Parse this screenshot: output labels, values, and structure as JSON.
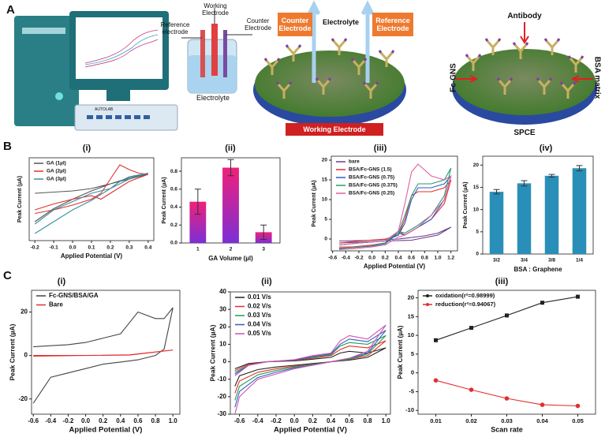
{
  "panels": {
    "a": "A",
    "b": "B",
    "c": "C",
    "b_sub": [
      "(i)",
      "(ii)",
      "(iii)",
      "(iv)"
    ],
    "c_sub": [
      "(i)",
      "(ii)",
      "(iii)"
    ]
  },
  "diagram": {
    "reference_electrode": "Reference electrode",
    "working_electrode": "Working Electrode",
    "counter_electrode": "Counter Electrode",
    "electrolyte": "Electrolyte",
    "autolab": "AUTOLAB",
    "counter_box": "Counter Electrode",
    "electrolyte_top": "Electrolyte",
    "reference_box": "Reference Electrode",
    "working_box": "Working Electrode",
    "antibody": "Antibody",
    "fc_gns": "Fc-GNS",
    "bsa_matrix": "BSA matrix",
    "spce": "SPCE"
  },
  "chart_data": [
    {
      "type": "line",
      "ylabel": "Peak Current (µA)",
      "xlabel": "Applied Potential (V)",
      "xlim": [
        -0.23,
        0.43
      ],
      "ylim": [
        -2.3,
        1.2
      ],
      "xticks": [
        -0.2,
        -0.1,
        {
          "value": 0,
          "label": "0.0"
        },
        0.1,
        0.2,
        0.3,
        0.4
      ],
      "legend": "upper left",
      "series": [
        {
          "name": "GA (1µl)",
          "color": "#555555",
          "x": [
            -0.2,
            -0.1,
            0,
            0.1,
            0.2,
            0.3,
            0.35,
            0.4,
            0.3,
            0.2,
            0.1,
            0,
            -0.1,
            -0.2
          ],
          "values": [
            -0.3,
            -0.25,
            -0.2,
            -0.1,
            0.1,
            0.35,
            0.45,
            0.5,
            0.3,
            0.1,
            -0.2,
            -0.55,
            -0.95,
            -1.5
          ]
        },
        {
          "name": "GA (2µl)",
          "color": "#e03030",
          "x": [
            -0.2,
            -0.1,
            0,
            0.1,
            0.15,
            0.2,
            0.25,
            0.3,
            0.35,
            0.4,
            0.3,
            0.2,
            0.15,
            0.1,
            0,
            -0.1,
            -0.2
          ],
          "values": [
            -1.15,
            -1.0,
            -0.8,
            -0.55,
            -0.3,
            0.3,
            0.9,
            0.7,
            0.55,
            0.5,
            0.2,
            -0.3,
            -0.55,
            -0.4,
            -0.55,
            -0.75,
            -1.0
          ]
        },
        {
          "name": "GA (3µl)",
          "color": "#3a8fa0",
          "x": [
            -0.2,
            -0.1,
            0,
            0.1,
            0.2,
            0.25,
            0.3,
            0.4,
            0.3,
            0.2,
            0.1,
            0,
            -0.1,
            -0.2
          ],
          "values": [
            -2.0,
            -1.5,
            -1.0,
            -0.6,
            -0.1,
            0.2,
            0.4,
            0.55,
            0.3,
            -0.1,
            -0.3,
            -0.65,
            -1.0,
            -1.6
          ]
        }
      ]
    },
    {
      "type": "bar",
      "ylabel": "Peak Current (µA)",
      "xlabel": "GA Volume (µl)",
      "categories": [
        "1",
        "2",
        "3"
      ],
      "values": [
        0.46,
        0.84,
        0.12
      ],
      "errors": [
        0.14,
        0.09,
        0.08
      ],
      "gradient": [
        "#f0207a",
        "#7b2fd6"
      ],
      "ylim": [
        0,
        0.95
      ],
      "yticks": [
        {
          "value": 0,
          "label": "0.0"
        },
        0.2,
        0.4,
        0.6,
        0.8
      ]
    },
    {
      "type": "line",
      "ylabel": "Peak Current (µA)",
      "xlabel": "Applied Potential (V)",
      "xlim": [
        -0.62,
        1.3
      ],
      "ylim": [
        -3,
        21
      ],
      "legend": "upper left",
      "xticks": [
        -0.6,
        -0.4,
        -0.2,
        {
          "value": 0,
          "label": "0.0"
        },
        0.2,
        0.4,
        0.6,
        0.8,
        {
          "value": 1,
          "label": "1.0"
        },
        1.2
      ],
      "yticks": [
        0,
        5,
        10,
        15,
        20
      ],
      "series": [
        {
          "name": "bare",
          "color": "#6a3a8a",
          "x": [
            -0.5,
            0,
            0.4,
            0.8,
            1.0,
            1.2,
            1.0,
            0.6,
            0.2,
            -0.2,
            -0.5
          ],
          "values": [
            -0.5,
            -0.3,
            0,
            0.8,
            1.5,
            3,
            1,
            -0.3,
            -0.5,
            -0.8,
            -1
          ]
        },
        {
          "name": "BSA/Fc-GNS (1.5)",
          "color": "#e03030",
          "x": [
            -0.5,
            -0.2,
            0.2,
            0.4,
            0.5,
            0.6,
            0.7,
            0.9,
            1.1,
            1.2,
            1.1,
            0.9,
            0.7,
            0.5,
            0.4,
            0.2,
            0,
            -0.3,
            -0.5
          ],
          "values": [
            -1,
            -0.5,
            0,
            1,
            5,
            11,
            12,
            12,
            13,
            15,
            9,
            5,
            3,
            1,
            2,
            -1,
            -1.5,
            -2,
            -2
          ]
        },
        {
          "name": "BSA/Fc-GNS (0.75)",
          "color": "#2a5fc0",
          "x": [
            -0.5,
            -0.2,
            0.2,
            0.4,
            0.5,
            0.6,
            0.7,
            0.9,
            1.1,
            1.2,
            1.1,
            0.9,
            0.7,
            0.5,
            0.4,
            0.2,
            0,
            -0.3,
            -0.5
          ],
          "values": [
            -1.5,
            -1,
            -0.5,
            1,
            4,
            10,
            13,
            13,
            14,
            16,
            10,
            5,
            3,
            1,
            1.5,
            -1.2,
            -1.8,
            -2.2,
            -2.3
          ]
        },
        {
          "name": "BSA/Fc-GNS (0.375)",
          "color": "#2a9a70",
          "x": [
            -0.5,
            -0.2,
            0.2,
            0.4,
            0.5,
            0.6,
            0.7,
            0.9,
            1.1,
            1.2,
            1.1,
            0.9,
            0.7,
            0.5,
            0.4,
            0.2,
            0,
            -0.3,
            -0.5
          ],
          "values": [
            -1.5,
            -1,
            -0.5,
            1.5,
            6,
            11,
            14,
            14,
            15,
            18,
            11,
            6,
            3.5,
            1.5,
            2,
            -1,
            -1.7,
            -2.2,
            -2.5
          ]
        },
        {
          "name": "BSA/Fc-GNS (0.25)",
          "color": "#e060a0",
          "x": [
            -0.5,
            -0.2,
            0.2,
            0.4,
            0.5,
            0.6,
            0.7,
            0.9,
            1.1,
            1.2,
            1.1,
            0.9,
            0.7,
            0.5,
            0.4,
            0.2,
            0,
            -0.3,
            -0.5
          ],
          "values": [
            -1.5,
            -1,
            -0.5,
            2,
            9,
            17,
            19,
            16,
            15,
            16,
            10,
            6,
            3,
            1,
            0.5,
            -1.5,
            -2,
            -2.5,
            -2.7
          ]
        }
      ]
    },
    {
      "type": "bar",
      "ylabel": "Peak Current (µA)",
      "xlabel": "BSA : Graphene",
      "categories": [
        "3/2",
        "3/4",
        "3/8",
        "1/4"
      ],
      "values": [
        14,
        15.9,
        17.6,
        19.3
      ],
      "errors": [
        0.5,
        0.6,
        0.3,
        0.6
      ],
      "color": "#2a8fb8",
      "ylim": [
        0,
        22
      ],
      "yticks": [
        0,
        5,
        10,
        15,
        20
      ]
    },
    {
      "type": "line",
      "ylabel": "Peak Current (µA)",
      "xlabel": "Applied Potential (V)",
      "xlim": [
        -0.62,
        1.08
      ],
      "ylim": [
        -27,
        30
      ],
      "legend": "upper left",
      "xticks": [
        -0.6,
        -0.4,
        -0.2,
        {
          "value": 0,
          "label": "0.0"
        },
        0.2,
        0.4,
        0.6,
        0.8,
        {
          "value": 1,
          "label": "1.0"
        }
      ],
      "yticks": [
        -20,
        0,
        20
      ],
      "series": [
        {
          "name": "Fc-GNS/BSA/GA",
          "color": "#444444",
          "x": [
            -0.6,
            -0.4,
            -0.2,
            0,
            0.2,
            0.4,
            0.5,
            0.6,
            0.8,
            0.9,
            1.0,
            0.9,
            0.8,
            0.6,
            0.4,
            0.2,
            0,
            -0.2,
            -0.4,
            -0.6
          ],
          "values": [
            4,
            4.5,
            5,
            6,
            8,
            10,
            15,
            20,
            17,
            17,
            22,
            3,
            0,
            -2,
            -3,
            -4,
            -6,
            -8,
            -10,
            -22
          ]
        },
        {
          "name": "Bare",
          "color": "#e03030",
          "x": [
            -0.6,
            0,
            0.5,
            1.0,
            0.5,
            0,
            -0.6
          ],
          "values": [
            0,
            0,
            0.2,
            2.5,
            0.3,
            0,
            -0.3
          ]
        }
      ]
    },
    {
      "type": "line",
      "ylabel": "Peak Current (µA)",
      "xlabel": "Applied Potential (V)",
      "xlim": [
        -0.7,
        1.05
      ],
      "ylim": [
        -30,
        40
      ],
      "legend": "upper left",
      "xticks": [
        -0.6,
        -0.4,
        -0.2,
        {
          "value": 0,
          "label": "0.0"
        },
        0.2,
        0.4,
        0.6,
        0.8,
        {
          "value": 1,
          "label": "1.0"
        }
      ],
      "yticks": [
        -30,
        -20,
        -10,
        0,
        10,
        20,
        30,
        40
      ],
      "series": [
        {
          "name": "0.01 V/s",
          "color": "#222222",
          "x": [
            -0.65,
            -0.5,
            -0.3,
            0,
            0.2,
            0.4,
            0.5,
            0.6,
            0.8,
            1.0,
            0.8,
            0.6,
            0.4,
            0.2,
            0,
            -0.2,
            -0.4,
            -0.6,
            -0.65
          ],
          "values": [
            -4,
            -1,
            0,
            0.5,
            1.5,
            2.5,
            5,
            6,
            5,
            8,
            2.5,
            1,
            0,
            -1,
            -2,
            -3,
            -4.5,
            -8,
            -14
          ]
        },
        {
          "name": "0.02 V/s",
          "color": "#e03030",
          "x": [
            -0.65,
            -0.5,
            -0.3,
            0,
            0.2,
            0.4,
            0.5,
            0.6,
            0.8,
            1.0,
            0.8,
            0.6,
            0.4,
            0.2,
            0,
            -0.2,
            -0.4,
            -0.6,
            -0.65
          ],
          "values": [
            -5,
            -1.5,
            0,
            0.8,
            2,
            3.5,
            7,
            9,
            8,
            12,
            3.5,
            1.5,
            0,
            -1.5,
            -2.5,
            -4,
            -6,
            -11,
            -18
          ]
        },
        {
          "name": "0.03 V/s",
          "color": "#2a9a50",
          "x": [
            -0.65,
            -0.5,
            -0.3,
            0,
            0.2,
            0.4,
            0.5,
            0.6,
            0.8,
            1.0,
            0.8,
            0.6,
            0.4,
            0.2,
            0,
            -0.2,
            -0.4,
            -0.6,
            -0.65
          ],
          "values": [
            -6,
            -2,
            0,
            1,
            2.5,
            4,
            9,
            11,
            10,
            15,
            4.5,
            1.5,
            0,
            -1.5,
            -3,
            -5,
            -7.5,
            -14,
            -22
          ]
        },
        {
          "name": "0.04 V/s",
          "color": "#2a5fc0",
          "x": [
            -0.65,
            -0.5,
            -0.3,
            0,
            0.2,
            0.4,
            0.5,
            0.6,
            0.8,
            1.0,
            0.8,
            0.6,
            0.4,
            0.2,
            0,
            -0.2,
            -0.4,
            -0.6,
            -0.65
          ],
          "values": [
            -7,
            -2,
            0,
            1,
            3,
            4.5,
            10,
            13,
            11.5,
            18,
            5,
            2,
            0,
            -2,
            -3.5,
            -6,
            -9,
            -17,
            -26
          ]
        },
        {
          "name": "0.05 V/s",
          "color": "#d050b0",
          "x": [
            -0.65,
            -0.5,
            -0.3,
            0,
            0.2,
            0.4,
            0.5,
            0.6,
            0.8,
            1.0,
            0.8,
            0.6,
            0.4,
            0.2,
            0,
            -0.2,
            -0.4,
            -0.6,
            -0.65
          ],
          "values": [
            -8,
            -2,
            0,
            1.2,
            3.5,
            5,
            12,
            15,
            13,
            21,
            6,
            2,
            0,
            -2,
            -4,
            -7,
            -10,
            -20,
            -30
          ]
        }
      ]
    },
    {
      "type": "line",
      "ylabel": "Peak Current (µA)",
      "xlabel": "Scan rate",
      "xlim": [
        0.005,
        0.055
      ],
      "ylim": [
        -11,
        22
      ],
      "legend": "upper left",
      "x": [
        0.01,
        0.02,
        0.03,
        0.04,
        0.05
      ],
      "xticks": [
        0.01,
        0.02,
        0.03,
        0.04,
        0.05
      ],
      "yticks": [
        -10,
        -5,
        0,
        5,
        10,
        15,
        20
      ],
      "series": [
        {
          "name": "oxidation(r²=0.98999)",
          "color": "#222222",
          "marker": "square",
          "values": [
            8.7,
            12,
            15.3,
            18.7,
            20.3
          ]
        },
        {
          "name": "reduction(r²=0.94067)",
          "color": "#e03030",
          "marker": "circle",
          "values": [
            -2,
            -4.5,
            -6.8,
            -8.5,
            -8.8
          ]
        }
      ]
    }
  ]
}
